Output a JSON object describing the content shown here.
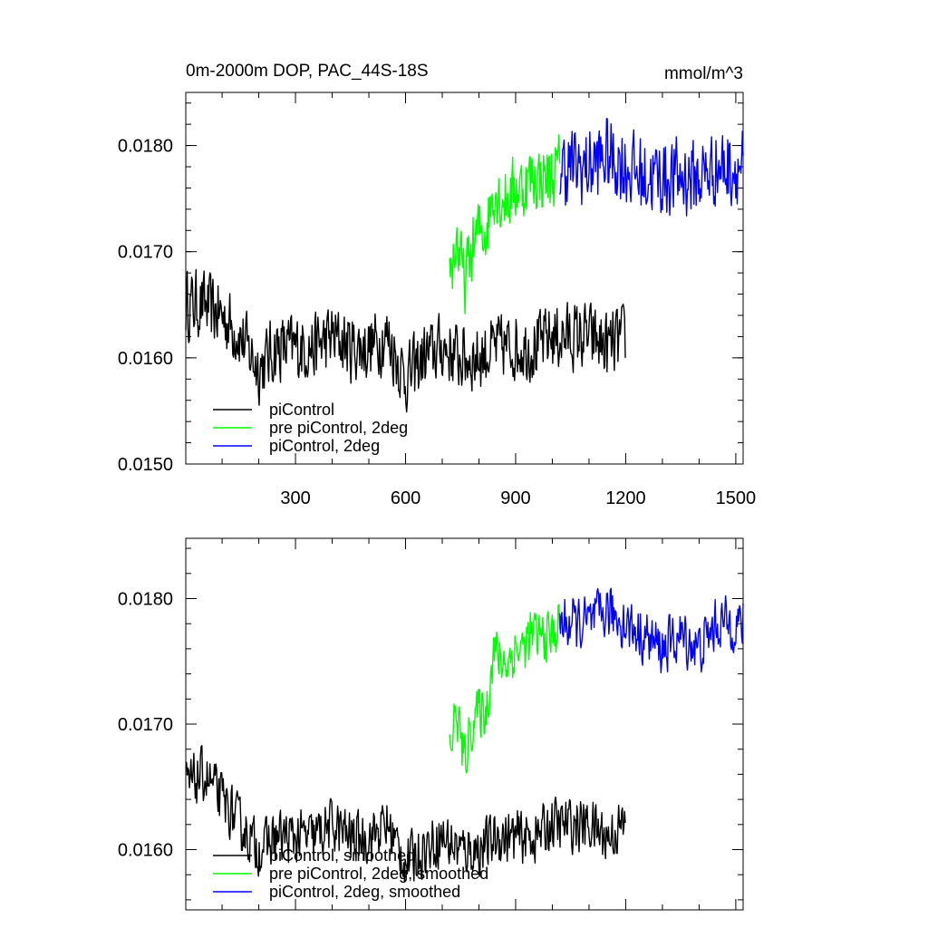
{
  "figure": {
    "title": "0m-2000m DOP, PAC_44S-18S",
    "units": "mmol/m^3"
  },
  "chart_data": [
    {
      "type": "line",
      "title": "0m-2000m DOP, PAC_44S-18S",
      "units": "mmol/m^3",
      "xlim": [
        1,
        1520
      ],
      "ylim": [
        0.015,
        0.0185
      ],
      "x_ticks": [
        300,
        600,
        900,
        1200,
        1500
      ],
      "y_ticks": [
        0.015,
        0.016,
        0.017,
        0.018
      ],
      "x_tick_labels": [
        "300",
        "600",
        "900",
        "1200",
        "1500"
      ],
      "y_tick_labels": [
        "0.0150",
        "0.0160",
        "0.0170",
        "0.0180"
      ],
      "legend_position": "bottom-left",
      "series": [
        {
          "name": "piControl",
          "color": "#000000",
          "x": [
            1,
            50,
            100,
            150,
            200,
            250,
            300,
            350,
            400,
            450,
            500,
            550,
            600,
            650,
            700,
            750,
            800,
            850,
            900,
            950,
            1000,
            1050,
            1100,
            1150,
            1200
          ],
          "values": [
            0.0165,
            0.0165,
            0.0164,
            0.0162,
            0.0159,
            0.0161,
            0.0161,
            0.0161,
            0.0162,
            0.0161,
            0.0161,
            0.0162,
            0.0158,
            0.016,
            0.0161,
            0.016,
            0.016,
            0.0161,
            0.0161,
            0.0161,
            0.0162,
            0.0162,
            0.0162,
            0.0161,
            0.0162
          ],
          "noise": 0.0006
        },
        {
          "name": "pre piControl, 2deg",
          "color": "#00ff00",
          "x": [
            720,
            740,
            760,
            780,
            800,
            820,
            840,
            860,
            880,
            900,
            920,
            940,
            960,
            980,
            1000,
            1020
          ],
          "values": [
            0.0168,
            0.0171,
            0.0167,
            0.017,
            0.0172,
            0.0172,
            0.0176,
            0.0175,
            0.0175,
            0.0176,
            0.0176,
            0.0177,
            0.0177,
            0.0177,
            0.0177,
            0.0178
          ],
          "noise": 0.0006
        },
        {
          "name": "piControl, 2deg",
          "color": "#0000ff",
          "x": [
            1020,
            1050,
            1100,
            1150,
            1200,
            1250,
            1300,
            1350,
            1400,
            1450,
            1500,
            1520
          ],
          "values": [
            0.0178,
            0.0178,
            0.0178,
            0.0179,
            0.0178,
            0.0177,
            0.0177,
            0.0177,
            0.0177,
            0.0178,
            0.0178,
            0.0178
          ],
          "noise": 0.0007
        }
      ]
    },
    {
      "type": "line",
      "xlim": [
        1,
        1520
      ],
      "ylim": [
        0.01552,
        0.01848
      ],
      "x_ticks": [
        300,
        600,
        900,
        1200,
        1500
      ],
      "y_ticks": [
        0.016,
        0.017,
        0.018
      ],
      "y_tick_labels": [
        "0.0160",
        "0.0170",
        "0.0180"
      ],
      "legend_position": "bottom-left",
      "series": [
        {
          "name": "piControl, smoothed",
          "color": "#000000",
          "x": [
            1,
            50,
            100,
            150,
            200,
            250,
            300,
            350,
            400,
            450,
            500,
            550,
            600,
            650,
            700,
            750,
            800,
            850,
            900,
            950,
            1000,
            1050,
            1100,
            1150,
            1200
          ],
          "values": [
            0.0165,
            0.0166,
            0.0164,
            0.0162,
            0.016,
            0.0161,
            0.0161,
            0.0161,
            0.0162,
            0.0161,
            0.0161,
            0.0162,
            0.0159,
            0.016,
            0.0161,
            0.016,
            0.016,
            0.0161,
            0.0161,
            0.0161,
            0.0162,
            0.0162,
            0.0162,
            0.0161,
            0.0162
          ],
          "noise": 0.0004
        },
        {
          "name": "pre piControl, 2deg, smoothed",
          "color": "#00ff00",
          "x": [
            720,
            740,
            760,
            780,
            800,
            820,
            840,
            860,
            880,
            900,
            920,
            940,
            960,
            980,
            1000,
            1020
          ],
          "values": [
            0.0168,
            0.0171,
            0.0167,
            0.017,
            0.0171,
            0.0171,
            0.0176,
            0.0175,
            0.0175,
            0.0176,
            0.0176,
            0.0177,
            0.0177,
            0.0177,
            0.0177,
            0.0178
          ],
          "noise": 0.0004
        },
        {
          "name": "piControl, 2deg, smoothed",
          "color": "#0000ff",
          "x": [
            1020,
            1050,
            1100,
            1150,
            1200,
            1250,
            1300,
            1350,
            1400,
            1450,
            1500,
            1520
          ],
          "values": [
            0.0178,
            0.0178,
            0.0178,
            0.0179,
            0.0178,
            0.0177,
            0.0176,
            0.0177,
            0.0176,
            0.0178,
            0.0178,
            0.0178
          ],
          "noise": 0.0004
        }
      ]
    }
  ]
}
